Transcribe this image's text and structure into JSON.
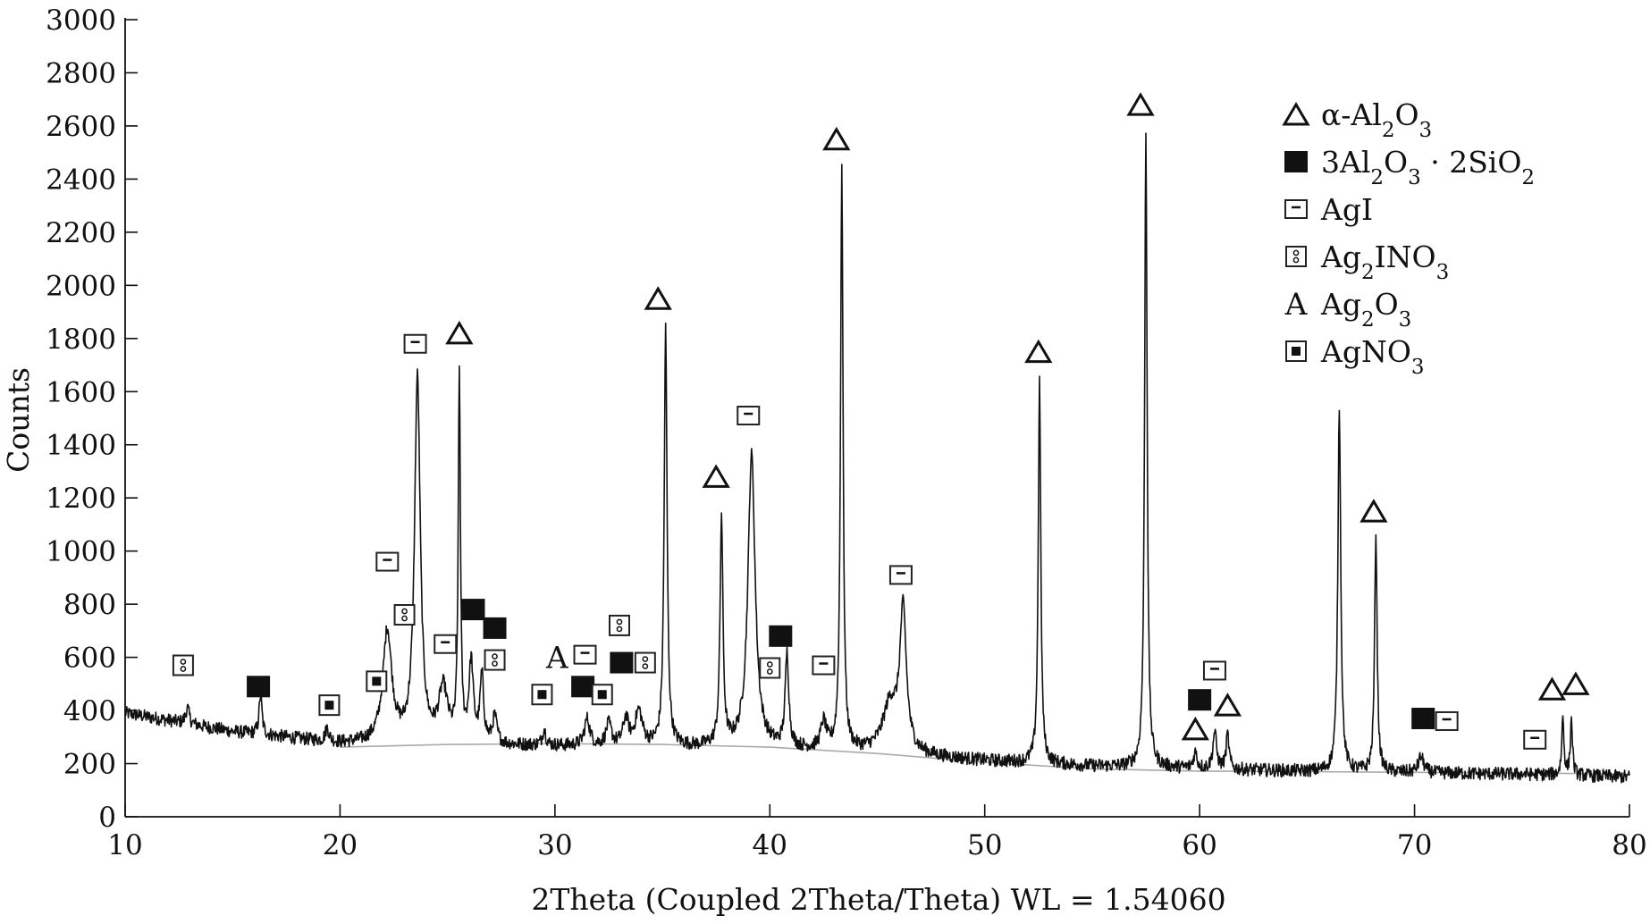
{
  "chart_data": {
    "type": "line",
    "title": "",
    "xlabel": "2Theta (Coupled 2Theta/Theta) WL = 1.54060",
    "ylabel": "Counts",
    "xlim": [
      10,
      80
    ],
    "ylim": [
      0,
      3000
    ],
    "xticks": [
      10,
      20,
      30,
      40,
      50,
      60,
      70,
      80
    ],
    "xtick_labels": [
      "10",
      "20",
      "30",
      "40",
      "50",
      "60",
      "70",
      "80"
    ],
    "yticks": [
      0,
      200,
      400,
      600,
      800,
      1000,
      1200,
      1400,
      1600,
      1800,
      2000,
      2200,
      2400,
      2600,
      2800,
      3000
    ],
    "ytick_labels": [
      "0",
      "200",
      "400",
      "600",
      "800",
      "1000",
      "1200",
      "1400",
      "1600",
      "1800",
      "2000",
      "2200",
      "2400",
      "2600",
      "2800",
      "3000"
    ],
    "grid": false,
    "legend_position": "top-right",
    "line_color": "#111111",
    "background_color": "#aaaaaa",
    "baseline": [
      [
        10,
        390
      ],
      [
        15,
        320
      ],
      [
        20,
        275
      ],
      [
        25,
        270
      ],
      [
        30,
        265
      ],
      [
        35,
        262
      ],
      [
        40,
        255
      ],
      [
        45,
        240
      ],
      [
        50,
        210
      ],
      [
        55,
        190
      ],
      [
        60,
        180
      ],
      [
        65,
        170
      ],
      [
        70,
        165
      ],
      [
        75,
        160
      ],
      [
        80,
        150
      ]
    ],
    "background_curve": [
      [
        20,
        262
      ],
      [
        25,
        272
      ],
      [
        30,
        275
      ],
      [
        35,
        272
      ],
      [
        40,
        262
      ],
      [
        45,
        238
      ],
      [
        50,
        205
      ],
      [
        55,
        180
      ],
      [
        60,
        172
      ],
      [
        65,
        170
      ],
      [
        70,
        167
      ],
      [
        75,
        165
      ],
      [
        80,
        160
      ]
    ],
    "peaks": [
      {
        "x": 12.9,
        "height": 60,
        "width": 0.1
      },
      {
        "x": 16.3,
        "height": 150,
        "width": 0.08
      },
      {
        "x": 19.4,
        "height": 50,
        "width": 0.1
      },
      {
        "x": 22.2,
        "height": 420,
        "width": 0.25
      },
      {
        "x": 23.6,
        "height": 1370,
        "width": 0.16
      },
      {
        "x": 24.8,
        "height": 200,
        "width": 0.25
      },
      {
        "x": 25.55,
        "height": 1380,
        "width": 0.06
      },
      {
        "x": 26.1,
        "height": 300,
        "width": 0.12
      },
      {
        "x": 26.6,
        "height": 250,
        "width": 0.1
      },
      {
        "x": 27.2,
        "height": 100,
        "width": 0.12
      },
      {
        "x": 29.5,
        "height": 60,
        "width": 0.1
      },
      {
        "x": 31.5,
        "height": 100,
        "width": 0.15
      },
      {
        "x": 32.5,
        "height": 80,
        "width": 0.15
      },
      {
        "x": 33.3,
        "height": 100,
        "width": 0.15
      },
      {
        "x": 33.9,
        "height": 130,
        "width": 0.2
      },
      {
        "x": 35.15,
        "height": 1570,
        "width": 0.08
      },
      {
        "x": 37.75,
        "height": 860,
        "width": 0.08
      },
      {
        "x": 39.15,
        "height": 1100,
        "width": 0.2
      },
      {
        "x": 40.8,
        "height": 350,
        "width": 0.1
      },
      {
        "x": 42.5,
        "height": 100,
        "width": 0.15
      },
      {
        "x": 43.35,
        "height": 2200,
        "width": 0.07
      },
      {
        "x": 45.6,
        "height": 180,
        "width": 0.4
      },
      {
        "x": 46.2,
        "height": 520,
        "width": 0.18
      },
      {
        "x": 52.55,
        "height": 1440,
        "width": 0.07
      },
      {
        "x": 57.5,
        "height": 2390,
        "width": 0.07
      },
      {
        "x": 59.8,
        "height": 60,
        "width": 0.1
      },
      {
        "x": 60.7,
        "height": 140,
        "width": 0.1
      },
      {
        "x": 61.3,
        "height": 130,
        "width": 0.08
      },
      {
        "x": 66.5,
        "height": 1380,
        "width": 0.08
      },
      {
        "x": 68.2,
        "height": 900,
        "width": 0.07
      },
      {
        "x": 70.3,
        "height": 60,
        "width": 0.15
      },
      {
        "x": 76.9,
        "height": 220,
        "width": 0.06
      },
      {
        "x": 77.3,
        "height": 210,
        "width": 0.06
      }
    ],
    "markers": [
      {
        "symbol": "triangle",
        "x": 25.55,
        "y": 1820
      },
      {
        "symbol": "triangle",
        "x": 34.8,
        "y": 1950
      },
      {
        "symbol": "triangle",
        "x": 37.5,
        "y": 1280
      },
      {
        "symbol": "triangle",
        "x": 43.1,
        "y": 2550
      },
      {
        "symbol": "triangle",
        "x": 52.5,
        "y": 1750
      },
      {
        "symbol": "triangle",
        "x": 57.25,
        "y": 2680
      },
      {
        "symbol": "triangle",
        "x": 59.8,
        "y": 330
      },
      {
        "symbol": "triangle",
        "x": 61.3,
        "y": 420
      },
      {
        "symbol": "triangle",
        "x": 68.1,
        "y": 1150
      },
      {
        "symbol": "triangle",
        "x": 76.4,
        "y": 480
      },
      {
        "symbol": "triangle",
        "x": 77.5,
        "y": 500
      },
      {
        "symbol": "filled-square",
        "x": 16.2,
        "y": 490
      },
      {
        "symbol": "filled-square",
        "x": 26.2,
        "y": 780
      },
      {
        "symbol": "filled-square",
        "x": 27.2,
        "y": 710
      },
      {
        "symbol": "filled-square",
        "x": 31.3,
        "y": 490
      },
      {
        "symbol": "filled-square",
        "x": 33.1,
        "y": 580
      },
      {
        "symbol": "filled-square",
        "x": 40.5,
        "y": 680
      },
      {
        "symbol": "filled-square",
        "x": 60.0,
        "y": 440
      },
      {
        "symbol": "filled-square",
        "x": 70.4,
        "y": 370
      },
      {
        "symbol": "agi",
        "x": 23.5,
        "y": 1780
      },
      {
        "symbol": "agi",
        "x": 22.2,
        "y": 960
      },
      {
        "symbol": "agi",
        "x": 24.9,
        "y": 650
      },
      {
        "symbol": "agi",
        "x": 31.4,
        "y": 610
      },
      {
        "symbol": "agi",
        "x": 39.0,
        "y": 1510
      },
      {
        "symbol": "agi",
        "x": 42.5,
        "y": 570
      },
      {
        "symbol": "agi",
        "x": 46.1,
        "y": 910
      },
      {
        "symbol": "agi",
        "x": 60.7,
        "y": 550
      },
      {
        "symbol": "agi",
        "x": 71.5,
        "y": 360
      },
      {
        "symbol": "agi",
        "x": 75.6,
        "y": 290
      },
      {
        "symbol": "ag2ino3",
        "x": 12.7,
        "y": 570
      },
      {
        "symbol": "ag2ino3",
        "x": 23.0,
        "y": 760
      },
      {
        "symbol": "ag2ino3",
        "x": 27.2,
        "y": 590
      },
      {
        "symbol": "ag2ino3",
        "x": 33.0,
        "y": 720
      },
      {
        "symbol": "ag2ino3",
        "x": 34.2,
        "y": 580
      },
      {
        "symbol": "ag2ino3",
        "x": 40.0,
        "y": 560
      },
      {
        "symbol": "agno3",
        "x": 19.5,
        "y": 420
      },
      {
        "symbol": "agno3",
        "x": 21.7,
        "y": 510
      },
      {
        "symbol": "agno3",
        "x": 29.4,
        "y": 460
      },
      {
        "symbol": "agno3",
        "x": 32.2,
        "y": 460
      },
      {
        "symbol": "letter-a",
        "x": 30.1,
        "y": 600
      }
    ],
    "legend": [
      {
        "symbol": "triangle",
        "name": "α-Al",
        "sub1": "2",
        "mid": "O",
        "sub2": "3",
        "tail": ""
      },
      {
        "symbol": "filled-square",
        "name": "3Al",
        "sub1": "2",
        "mid": "O",
        "sub2": "3",
        "tail": " · 2SiO₂"
      },
      {
        "symbol": "agi",
        "name": "AgI",
        "sub1": "",
        "mid": "",
        "sub2": "",
        "tail": ""
      },
      {
        "symbol": "ag2ino3",
        "name": "Ag",
        "sub1": "2",
        "mid": "INO",
        "sub2": "3",
        "tail": ""
      },
      {
        "symbol": "letter-a",
        "name": "Ag",
        "sub1": "2",
        "mid": "O",
        "sub2": "3",
        "tail": ""
      },
      {
        "symbol": "agno3",
        "name": "AgNO",
        "sub1": "3",
        "mid": "",
        "sub2": "",
        "tail": ""
      }
    ],
    "marker_letter": "A"
  }
}
